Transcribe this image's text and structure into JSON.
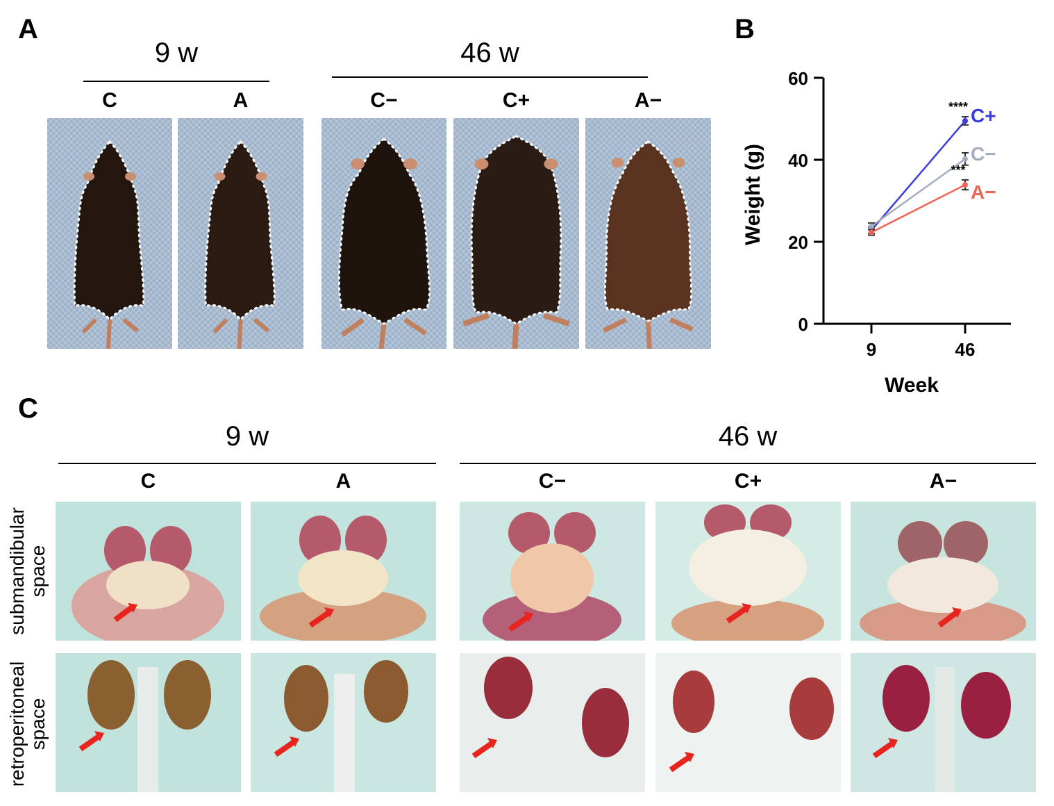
{
  "panels": {
    "a": "A",
    "b": "B",
    "c": "C"
  },
  "panel_a": {
    "week_groups": [
      "9 w",
      "46 w"
    ],
    "group_labels": [
      "C",
      "A",
      "C−",
      "C+",
      "A−"
    ]
  },
  "panel_c": {
    "week_groups": [
      "9 w",
      "46 w"
    ],
    "group_labels": [
      "C",
      "A",
      "C−",
      "C+",
      "A−"
    ],
    "row_labels": [
      [
        "submandibular",
        "space"
      ],
      [
        "retroperitoneal",
        "space"
      ]
    ]
  },
  "chart_data": {
    "type": "line",
    "xlabel": "Week",
    "ylabel": "Weight (g)",
    "x": [
      9,
      46
    ],
    "xticks": [
      "9",
      "46"
    ],
    "yticks": [
      "0",
      "20",
      "40",
      "60"
    ],
    "ylim": [
      0,
      60
    ],
    "series": [
      {
        "name": "C+",
        "values": [
          22.8,
          49.5
        ],
        "err": [
          0.8,
          1.0
        ],
        "color": "#3b3bdf",
        "sig": "****"
      },
      {
        "name": "C−",
        "values": [
          23.8,
          40.2
        ],
        "err": [
          0.8,
          1.5
        ],
        "color": "#a4adbd",
        "sig": ""
      },
      {
        "name": "A−",
        "values": [
          22.3,
          33.9
        ],
        "err": [
          0.7,
          1.2
        ],
        "color": "#ef6459",
        "sig": "***"
      }
    ]
  },
  "colors": {
    "arrow": "#e8241f",
    "outline": "#ffffff",
    "fur": "#2b1c14",
    "fur_brown": "#5a3320",
    "background": "#9db2c9"
  }
}
